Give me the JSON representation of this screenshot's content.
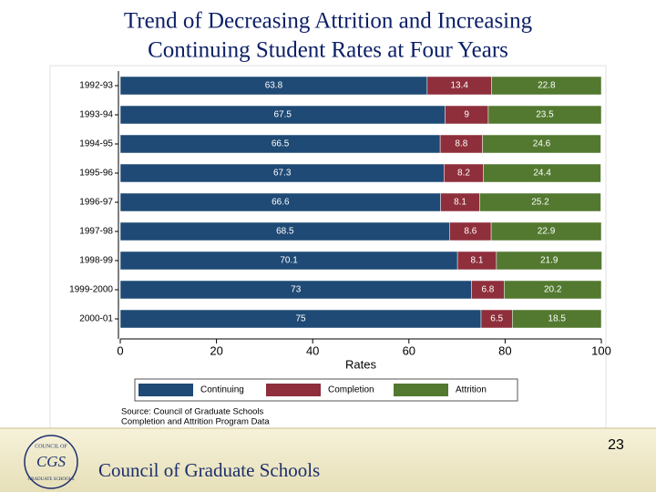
{
  "chart_data": {
    "type": "stacked-barh",
    "title": [
      "Trend of Decreasing Attrition and Increasing",
      "Continuing Student Rates at Four Years"
    ],
    "categories": [
      "1992-93",
      "1993-94",
      "1994-95",
      "1995-96",
      "1996-97",
      "1997-98",
      "1998-99",
      "1999-2000",
      "2000-01"
    ],
    "series": [
      {
        "name": "Continuing",
        "color": "#1f4a75",
        "values": [
          63.8,
          67.5,
          66.5,
          67.3,
          66.6,
          68.5,
          70.1,
          73,
          75
        ]
      },
      {
        "name": "Completion",
        "color": "#8e2f3b",
        "values": [
          13.4,
          9,
          8.8,
          8.2,
          8.1,
          8.6,
          8.1,
          6.8,
          6.5
        ]
      },
      {
        "name": "Attrition",
        "color": "#52792f",
        "values": [
          22.8,
          23.5,
          24.6,
          24.4,
          25.2,
          22.9,
          21.9,
          20.2,
          18.5
        ]
      }
    ],
    "xlabel": "Rates",
    "xlim": [
      0,
      100
    ],
    "xticks": [
      0,
      20,
      40,
      60,
      80,
      100
    ],
    "source": [
      "Source: Council of Graduate Schools",
      "Completion and Attrition Program Data"
    ]
  },
  "slide": {
    "page_number": "23",
    "footer": "Council of Graduate Schools",
    "logo": [
      "COUNCIL OF",
      "CGS",
      "GRADUATE SCHOOLS"
    ]
  }
}
